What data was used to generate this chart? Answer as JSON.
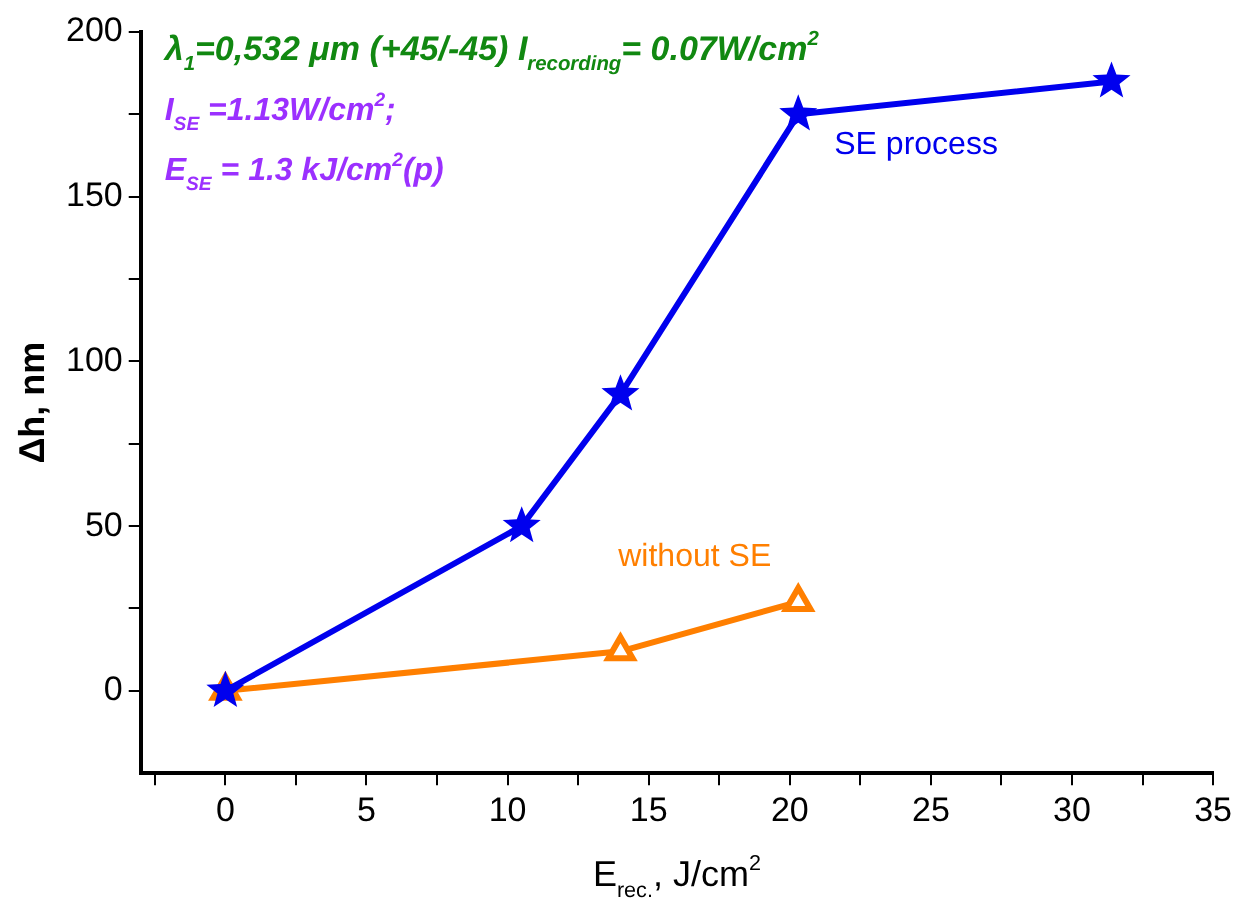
{
  "chart_data": {
    "type": "line",
    "xlabel": "E$_{rec.}$, J/cm$^{2}$",
    "ylabel": "Δh, nm",
    "xlim": [
      -3,
      35
    ],
    "ylim": [
      -25,
      200
    ],
    "xticks": [
      {
        "value": -2.5,
        "label": null
      },
      0,
      {
        "value": 2.5,
        "label": null
      },
      5,
      {
        "value": 7.5,
        "label": null
      },
      10,
      {
        "value": 12.5,
        "label": null
      },
      15,
      {
        "value": 17.5,
        "label": null
      },
      20,
      {
        "value": 22.5,
        "label": null
      },
      25,
      {
        "value": 27.5,
        "label": null
      },
      30,
      {
        "value": 32.5,
        "label": null
      },
      35
    ],
    "yticks": [
      0,
      {
        "value": 25,
        "label": null
      },
      50,
      {
        "value": 75,
        "label": null
      },
      100,
      {
        "value": 125,
        "label": null
      },
      150,
      {
        "value": 175,
        "label": null
      },
      200
    ],
    "grid": false,
    "legend": false,
    "line_style": "solid",
    "series": [
      {
        "name": "SE process",
        "color": "#0000ee",
        "marker": "star",
        "x": [
          0,
          10.5,
          14,
          20.3,
          31.4
        ],
        "values": [
          0,
          50,
          90,
          175,
          185
        ]
      },
      {
        "name": "without SE",
        "color": "#ff7f00",
        "marker": "triangle",
        "x": [
          0,
          14,
          20.3
        ],
        "values": [
          0,
          12,
          27
        ]
      }
    ],
    "annotations": [
      "λ$_{1}$=0,532 μm (+45/-45) I$_{recording}$= 0.07W/cm$^{2}$",
      "I$_{SE}$ =1.13W/cm$^{2}$;",
      "E$_{SE}$ = 1.3 kJ/cm$^{2}$(p)"
    ]
  }
}
